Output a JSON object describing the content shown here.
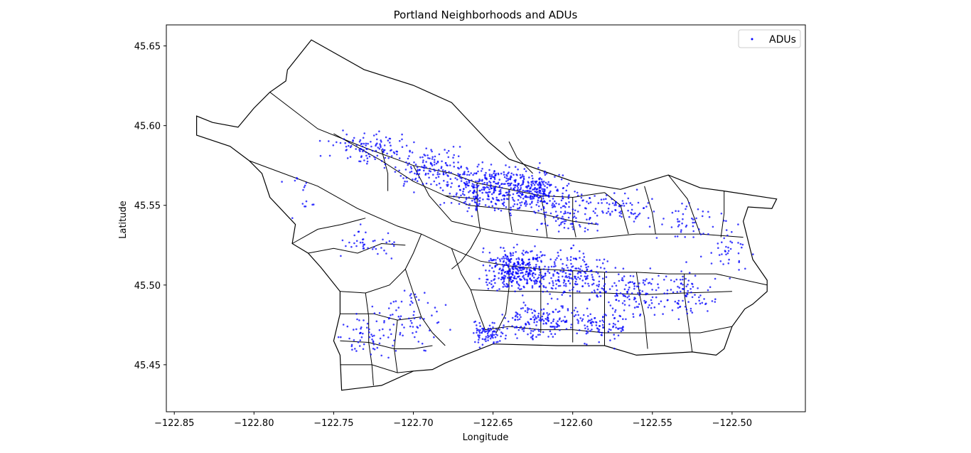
{
  "chart_data": {
    "type": "scatter",
    "title": "Portland Neighborhoods and ADUs",
    "xlabel": "Longitude",
    "ylabel": "Latitude",
    "xlim": [
      -122.855,
      -122.454
    ],
    "ylim": [
      45.4205,
      45.6632
    ],
    "x_ticks": [
      -122.85,
      -122.8,
      -122.75,
      -122.7,
      -122.65,
      -122.6,
      -122.55,
      -122.5
    ],
    "x_tick_labels": [
      "−122.85",
      "−122.80",
      "−122.75",
      "−122.70",
      "−122.65",
      "−122.60",
      "−122.55",
      "−122.50"
    ],
    "y_ticks": [
      45.45,
      45.5,
      45.55,
      45.6,
      45.65
    ],
    "y_tick_labels": [
      "45.45",
      "45.50",
      "45.55",
      "45.60",
      "45.65"
    ],
    "grid": false,
    "legend": {
      "position": "top-right",
      "entries": [
        "ADUs"
      ]
    },
    "colors": {
      "adu": "#0000ff",
      "boundary": "#000000"
    },
    "boundary_outline": [
      [
        -122.764,
        45.6538
      ],
      [
        -122.731,
        45.6352
      ],
      [
        -122.7,
        45.6253
      ],
      [
        -122.676,
        45.6145
      ],
      [
        -122.653,
        45.59
      ],
      [
        -122.64,
        45.579
      ],
      [
        -122.62,
        45.572
      ],
      [
        -122.6,
        45.565
      ],
      [
        -122.57,
        45.56
      ],
      [
        -122.54,
        45.569
      ],
      [
        -122.52,
        45.561
      ],
      [
        -122.505,
        45.559
      ],
      [
        -122.472,
        45.554
      ],
      [
        -122.475,
        45.548
      ],
      [
        -122.49,
        45.549
      ],
      [
        -122.493,
        45.54
      ],
      [
        -122.487,
        45.516
      ],
      [
        -122.478,
        45.503
      ],
      [
        -122.478,
        45.496
      ],
      [
        -122.487,
        45.488
      ],
      [
        -122.492,
        45.485
      ],
      [
        -122.5,
        45.474
      ],
      [
        -122.505,
        45.46
      ],
      [
        -122.51,
        45.456
      ],
      [
        -122.525,
        45.458
      ],
      [
        -122.56,
        45.456
      ],
      [
        -122.58,
        45.462
      ],
      [
        -122.61,
        45.462
      ],
      [
        -122.65,
        45.463
      ],
      [
        -122.668,
        45.456
      ],
      [
        -122.68,
        45.451
      ],
      [
        -122.688,
        45.447
      ],
      [
        -122.7,
        45.446
      ],
      [
        -122.72,
        45.437
      ],
      [
        -122.745,
        45.434
      ],
      [
        -122.746,
        45.456
      ],
      [
        -122.75,
        45.465
      ],
      [
        -122.746,
        45.482
      ],
      [
        -122.746,
        45.496
      ],
      [
        -122.758,
        45.511
      ],
      [
        -122.766,
        45.52
      ],
      [
        -122.776,
        45.526
      ],
      [
        -122.774,
        45.538
      ],
      [
        -122.79,
        45.555
      ],
      [
        -122.795,
        45.57
      ],
      [
        -122.803,
        45.578
      ],
      [
        -122.815,
        45.587
      ],
      [
        -122.836,
        45.594
      ],
      [
        -122.836,
        45.606
      ],
      [
        -122.826,
        45.602
      ],
      [
        -122.81,
        45.599
      ],
      [
        -122.8,
        45.611
      ],
      [
        -122.79,
        45.621
      ],
      [
        -122.78,
        45.628
      ],
      [
        -122.779,
        45.635
      ],
      [
        -122.764,
        45.6538
      ]
    ],
    "boundary_lines": [
      [
        [
          -122.79,
          45.621
        ],
        [
          -122.76,
          45.598
        ],
        [
          -122.73,
          45.586
        ],
        [
          -122.7,
          45.575
        ],
        [
          -122.676,
          45.57
        ]
      ],
      [
        [
          -122.803,
          45.578
        ],
        [
          -122.76,
          45.562
        ],
        [
          -122.735,
          45.548
        ],
        [
          -122.71,
          45.537
        ],
        [
          -122.695,
          45.532
        ]
      ],
      [
        [
          -122.75,
          45.595
        ],
        [
          -122.72,
          45.578
        ],
        [
          -122.7,
          45.565
        ],
        [
          -122.68,
          45.556
        ],
        [
          -122.66,
          45.554
        ]
      ],
      [
        [
          -122.72,
          45.585
        ],
        [
          -122.716,
          45.57
        ],
        [
          -122.716,
          45.559
        ]
      ],
      [
        [
          -122.7,
          45.575
        ],
        [
          -122.69,
          45.556
        ],
        [
          -122.676,
          45.54
        ]
      ],
      [
        [
          -122.676,
          45.57
        ],
        [
          -122.66,
          45.564
        ],
        [
          -122.64,
          45.56
        ],
        [
          -122.62,
          45.556
        ],
        [
          -122.6,
          45.555
        ],
        [
          -122.58,
          45.558
        ]
      ],
      [
        [
          -122.68,
          45.556
        ],
        [
          -122.665,
          45.55
        ],
        [
          -122.645,
          45.548
        ],
        [
          -122.625,
          45.546
        ],
        [
          -122.6,
          45.54
        ],
        [
          -122.585,
          45.538
        ]
      ],
      [
        [
          -122.676,
          45.54
        ],
        [
          -122.65,
          45.534
        ],
        [
          -122.63,
          45.531
        ],
        [
          -122.61,
          45.529
        ],
        [
          -122.59,
          45.529
        ],
        [
          -122.56,
          45.532
        ],
        [
          -122.52,
          45.532
        ],
        [
          -122.493,
          45.53
        ]
      ],
      [
        [
          -122.66,
          45.564
        ],
        [
          -122.66,
          45.548
        ],
        [
          -122.658,
          45.534
        ]
      ],
      [
        [
          -122.64,
          45.56
        ],
        [
          -122.64,
          45.546
        ],
        [
          -122.638,
          45.533
        ]
      ],
      [
        [
          -122.62,
          45.556
        ],
        [
          -122.618,
          45.546
        ],
        [
          -122.616,
          45.53
        ]
      ],
      [
        [
          -122.6,
          45.555
        ],
        [
          -122.6,
          45.54
        ],
        [
          -122.598,
          45.53
        ]
      ],
      [
        [
          -122.64,
          45.59
        ],
        [
          -122.635,
          45.58
        ],
        [
          -122.625,
          45.57
        ]
      ],
      [
        [
          -122.58,
          45.558
        ],
        [
          -122.57,
          45.55
        ],
        [
          -122.565,
          45.532
        ]
      ],
      [
        [
          -122.555,
          45.562
        ],
        [
          -122.55,
          45.545
        ],
        [
          -122.548,
          45.532
        ]
      ],
      [
        [
          -122.54,
          45.569
        ],
        [
          -122.528,
          45.554
        ],
        [
          -122.52,
          45.532
        ]
      ],
      [
        [
          -122.505,
          45.559
        ],
        [
          -122.505,
          45.545
        ],
        [
          -122.507,
          45.53
        ]
      ],
      [
        [
          -122.695,
          45.532
        ],
        [
          -122.676,
          45.523
        ],
        [
          -122.658,
          45.515
        ],
        [
          -122.64,
          45.512
        ],
        [
          -122.62,
          45.51
        ],
        [
          -122.6,
          45.509
        ],
        [
          -122.58,
          45.508
        ],
        [
          -122.56,
          45.508
        ],
        [
          -122.54,
          45.507
        ],
        [
          -122.51,
          45.507
        ],
        [
          -122.478,
          45.5
        ]
      ],
      [
        [
          -122.676,
          45.523
        ],
        [
          -122.67,
          45.507
        ],
        [
          -122.664,
          45.497
        ],
        [
          -122.66,
          45.485
        ],
        [
          -122.655,
          45.472
        ]
      ],
      [
        [
          -122.64,
          45.512
        ],
        [
          -122.64,
          45.498
        ],
        [
          -122.642,
          45.482
        ],
        [
          -122.648,
          45.47
        ]
      ],
      [
        [
          -122.62,
          45.51
        ],
        [
          -122.62,
          45.496
        ],
        [
          -122.62,
          45.482
        ],
        [
          -122.62,
          45.47
        ]
      ],
      [
        [
          -122.6,
          45.509
        ],
        [
          -122.6,
          45.495
        ],
        [
          -122.6,
          45.481
        ],
        [
          -122.6,
          45.464
        ]
      ],
      [
        [
          -122.58,
          45.508
        ],
        [
          -122.58,
          45.495
        ],
        [
          -122.58,
          45.48
        ],
        [
          -122.58,
          45.462
        ]
      ],
      [
        [
          -122.56,
          45.508
        ],
        [
          -122.558,
          45.494
        ],
        [
          -122.555,
          45.48
        ],
        [
          -122.553,
          45.46
        ]
      ],
      [
        [
          -122.53,
          45.507
        ],
        [
          -122.53,
          45.495
        ],
        [
          -122.528,
          45.48
        ],
        [
          -122.525,
          45.458
        ]
      ],
      [
        [
          -122.664,
          45.497
        ],
        [
          -122.64,
          45.496
        ],
        [
          -122.62,
          45.496
        ],
        [
          -122.6,
          45.495
        ],
        [
          -122.58,
          45.495
        ],
        [
          -122.555,
          45.494
        ],
        [
          -122.53,
          45.495
        ],
        [
          -122.5,
          45.496
        ]
      ],
      [
        [
          -122.655,
          45.472
        ],
        [
          -122.64,
          45.474
        ],
        [
          -122.62,
          45.472
        ],
        [
          -122.6,
          45.472
        ],
        [
          -122.58,
          45.47
        ],
        [
          -122.555,
          45.47
        ],
        [
          -122.52,
          45.47
        ],
        [
          -122.5,
          45.474
        ]
      ],
      [
        [
          -122.695,
          45.532
        ],
        [
          -122.7,
          45.52
        ],
        [
          -122.705,
          45.51
        ],
        [
          -122.715,
          45.5
        ],
        [
          -122.73,
          45.495
        ],
        [
          -122.746,
          45.496
        ]
      ],
      [
        [
          -122.705,
          45.51
        ],
        [
          -122.7,
          45.495
        ],
        [
          -122.695,
          45.48
        ],
        [
          -122.688,
          45.47
        ],
        [
          -122.68,
          45.462
        ]
      ],
      [
        [
          -122.746,
          45.482
        ],
        [
          -122.725,
          45.482
        ],
        [
          -122.71,
          45.478
        ],
        [
          -122.695,
          45.48
        ]
      ],
      [
        [
          -122.746,
          45.465
        ],
        [
          -122.728,
          45.464
        ],
        [
          -122.712,
          45.46
        ],
        [
          -122.7,
          45.46
        ],
        [
          -122.688,
          45.462
        ]
      ],
      [
        [
          -122.73,
          45.495
        ],
        [
          -122.728,
          45.48
        ],
        [
          -122.728,
          45.464
        ],
        [
          -122.726,
          45.45
        ],
        [
          -122.725,
          45.437
        ]
      ],
      [
        [
          -122.71,
          45.478
        ],
        [
          -122.712,
          45.46
        ],
        [
          -122.71,
          45.445
        ]
      ],
      [
        [
          -122.746,
          45.45
        ],
        [
          -122.726,
          45.45
        ],
        [
          -122.71,
          45.445
        ],
        [
          -122.7,
          45.446
        ]
      ],
      [
        [
          -122.658,
          45.534
        ],
        [
          -122.664,
          45.523
        ],
        [
          -122.67,
          45.515
        ],
        [
          -122.676,
          45.51
        ]
      ],
      [
        [
          -122.766,
          45.52
        ],
        [
          -122.75,
          45.523
        ],
        [
          -122.735,
          45.52
        ],
        [
          -122.72,
          45.526
        ],
        [
          -122.705,
          45.525
        ]
      ],
      [
        [
          -122.776,
          45.526
        ],
        [
          -122.76,
          45.535
        ],
        [
          -122.745,
          45.538
        ],
        [
          -122.73,
          45.542
        ]
      ]
    ],
    "series": [
      {
        "name": "ADUs",
        "clusters": [
          {
            "center": [
              -122.727,
              45.586
            ],
            "spread": [
              0.02,
              0.008
            ],
            "count": 110
          },
          {
            "center": [
              -122.685,
              45.572
            ],
            "spread": [
              0.022,
              0.01
            ],
            "count": 160
          },
          {
            "center": [
              -122.65,
              45.56
            ],
            "spread": [
              0.022,
              0.012
            ],
            "count": 320
          },
          {
            "center": [
              -122.622,
              45.559
            ],
            "spread": [
              0.016,
              0.01
            ],
            "count": 200
          },
          {
            "center": [
              -122.6,
              45.546
            ],
            "spread": [
              0.018,
              0.01
            ],
            "count": 110
          },
          {
            "center": [
              -122.57,
              45.548
            ],
            "spread": [
              0.018,
              0.008
            ],
            "count": 60
          },
          {
            "center": [
              -122.53,
              45.54
            ],
            "spread": [
              0.02,
              0.01
            ],
            "count": 50
          },
          {
            "center": [
              -122.5,
              45.52
            ],
            "spread": [
              0.012,
              0.012
            ],
            "count": 35
          },
          {
            "center": [
              -122.635,
              45.51
            ],
            "spread": [
              0.018,
              0.011
            ],
            "count": 340
          },
          {
            "center": [
              -122.6,
              45.507
            ],
            "spread": [
              0.018,
              0.012
            ],
            "count": 180
          },
          {
            "center": [
              -122.565,
              45.495
            ],
            "spread": [
              0.018,
              0.012
            ],
            "count": 120
          },
          {
            "center": [
              -122.53,
              45.495
            ],
            "spread": [
              0.018,
              0.012
            ],
            "count": 90
          },
          {
            "center": [
              -122.62,
              45.478
            ],
            "spread": [
              0.02,
              0.01
            ],
            "count": 160
          },
          {
            "center": [
              -122.653,
              45.47
            ],
            "spread": [
              0.008,
              0.006
            ],
            "count": 80
          },
          {
            "center": [
              -122.582,
              45.475
            ],
            "spread": [
              0.016,
              0.009
            ],
            "count": 90
          },
          {
            "center": [
              -122.7,
              45.48
            ],
            "spread": [
              0.016,
              0.015
            ],
            "count": 70
          },
          {
            "center": [
              -122.73,
              45.468
            ],
            "spread": [
              0.012,
              0.015
            ],
            "count": 55
          },
          {
            "center": [
              -122.73,
              45.525
            ],
            "spread": [
              0.018,
              0.008
            ],
            "count": 40
          },
          {
            "center": [
              -122.77,
              45.555
            ],
            "spread": [
              0.008,
              0.01
            ],
            "count": 15
          }
        ]
      }
    ]
  }
}
